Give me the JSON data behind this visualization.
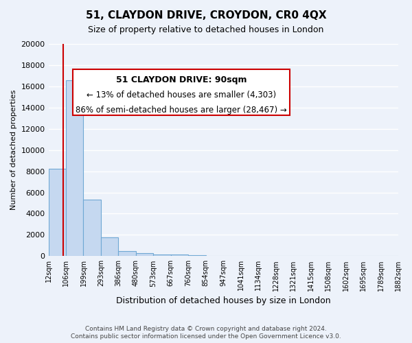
{
  "title": "51, CLAYDON DRIVE, CROYDON, CR0 4QX",
  "subtitle": "Size of property relative to detached houses in London",
  "xlabel": "Distribution of detached houses by size in London",
  "ylabel": "Number of detached properties",
  "bar_values": [
    8200,
    16600,
    5300,
    1750,
    500,
    250,
    175,
    120,
    80,
    0,
    0,
    0,
    0,
    0,
    0,
    0,
    0,
    0,
    0,
    0
  ],
  "bin_edges": [
    "12sqm",
    "106sqm",
    "199sqm",
    "293sqm",
    "386sqm",
    "480sqm",
    "573sqm",
    "667sqm",
    "760sqm",
    "854sqm",
    "947sqm",
    "1041sqm",
    "1134sqm",
    "1228sqm",
    "1321sqm",
    "1415sqm",
    "1508sqm",
    "1602sqm",
    "1695sqm",
    "1789sqm",
    "1882sqm"
  ],
  "bar_color": "#c5d8f0",
  "bar_edge_color": "#6fa8d4",
  "property_line_color": "#cc0000",
  "annotation_title": "51 CLAYDON DRIVE: 90sqm",
  "annotation_line1": "← 13% of detached houses are smaller (4,303)",
  "annotation_line2": "86% of semi-detached houses are larger (28,467) →",
  "box_facecolor": "#ffffff",
  "box_edgecolor": "#cc0000",
  "ylim": [
    0,
    20000
  ],
  "yticks": [
    0,
    2000,
    4000,
    6000,
    8000,
    10000,
    12000,
    14000,
    16000,
    18000,
    20000
  ],
  "bg_color": "#edf2fa",
  "grid_color": "#ffffff",
  "footnote1": "Contains HM Land Registry data © Crown copyright and database right 2024.",
  "footnote2": "Contains public sector information licensed under the Open Government Licence v3.0."
}
